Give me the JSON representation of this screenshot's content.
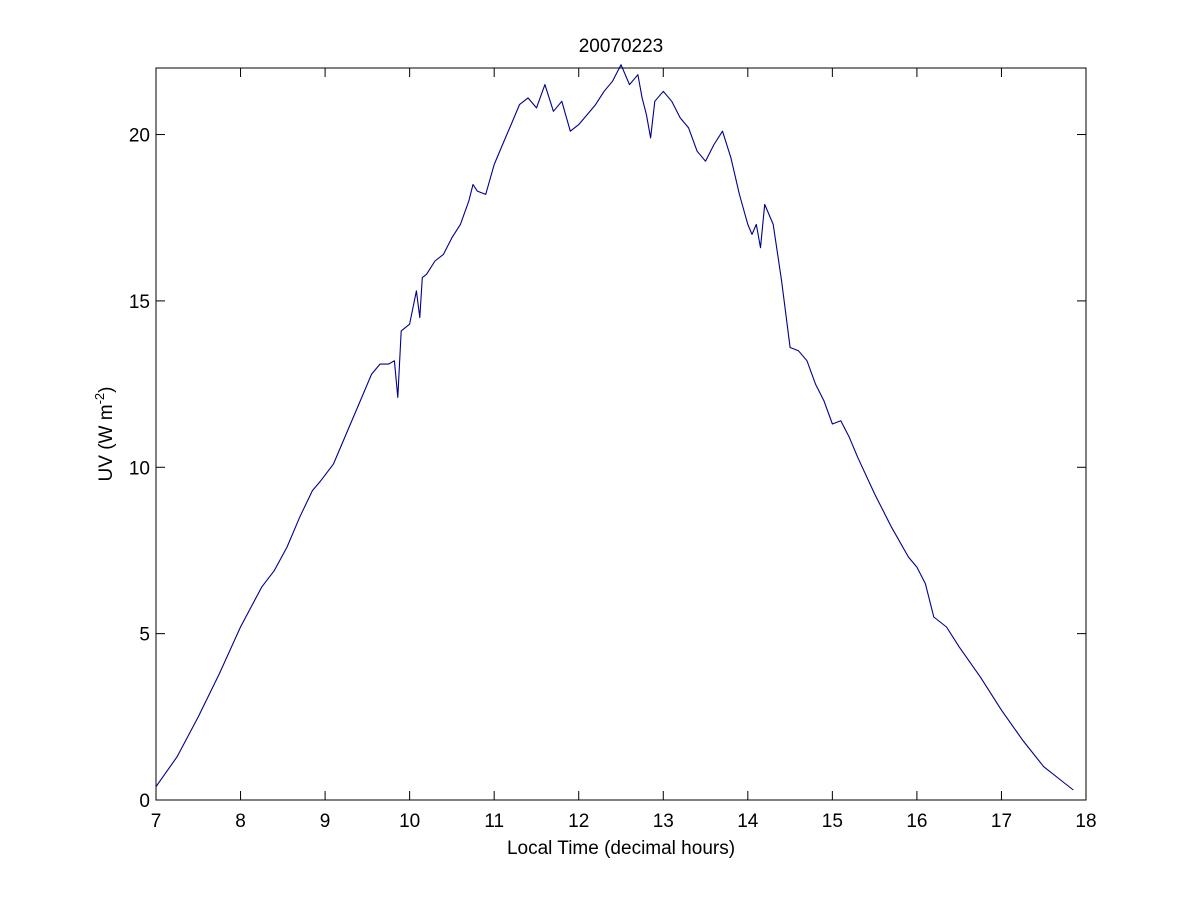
{
  "chart_data": {
    "type": "line",
    "title": "20070223",
    "xlabel": "Local Time (decimal hours)",
    "ylabel": "UV (W m⁻²)",
    "ylabel_base": "UV (W m",
    "ylabel_exp": "-2",
    "ylabel_close": ")",
    "xlim": [
      7,
      18
    ],
    "ylim": [
      0,
      22
    ],
    "xticks": [
      7,
      8,
      9,
      10,
      11,
      12,
      13,
      14,
      15,
      16,
      17,
      18
    ],
    "yticks": [
      0,
      5,
      10,
      15,
      20
    ],
    "grid": false,
    "line_color": "#00008b",
    "series": [
      {
        "x": [
          7.0,
          7.25,
          7.5,
          7.75,
          8.0,
          8.25,
          8.4,
          8.55,
          8.7,
          8.85,
          8.95,
          9.1,
          9.25,
          9.4,
          9.55,
          9.65,
          9.75,
          9.82,
          9.86,
          9.9,
          10.0,
          10.08,
          10.12,
          10.15,
          10.2,
          10.3,
          10.4,
          10.5,
          10.6,
          10.7,
          10.75,
          10.8,
          10.9,
          11.0,
          11.1,
          11.2,
          11.3,
          11.4,
          11.5,
          11.6,
          11.7,
          11.8,
          11.9,
          12.0,
          12.1,
          12.2,
          12.3,
          12.4,
          12.5,
          12.6,
          12.7,
          12.75,
          12.8,
          12.85,
          12.9,
          13.0,
          13.1,
          13.2,
          13.3,
          13.4,
          13.5,
          13.6,
          13.7,
          13.8,
          13.9,
          14.0,
          14.05,
          14.1,
          14.15,
          14.2,
          14.3,
          14.4,
          14.5,
          14.6,
          14.7,
          14.8,
          14.9,
          15.0,
          15.1,
          15.2,
          15.3,
          15.5,
          15.7,
          15.9,
          16.0,
          16.1,
          16.2,
          16.35,
          16.5,
          16.75,
          17.0,
          17.25,
          17.5,
          17.7,
          17.85
        ],
        "y": [
          0.4,
          1.3,
          2.5,
          3.8,
          5.2,
          6.4,
          6.9,
          7.6,
          8.5,
          9.3,
          9.6,
          10.1,
          11.0,
          11.9,
          12.8,
          13.1,
          13.1,
          13.2,
          12.1,
          14.1,
          14.3,
          15.3,
          14.5,
          15.7,
          15.8,
          16.2,
          16.4,
          16.9,
          17.3,
          18.0,
          18.5,
          18.3,
          18.2,
          19.1,
          19.7,
          20.3,
          20.9,
          21.1,
          20.8,
          21.5,
          20.7,
          21.0,
          20.1,
          20.3,
          20.6,
          20.9,
          21.3,
          21.6,
          22.1,
          21.5,
          21.8,
          21.1,
          20.6,
          19.9,
          21.0,
          21.3,
          21.0,
          20.5,
          20.2,
          19.5,
          19.2,
          19.7,
          20.1,
          19.3,
          18.2,
          17.3,
          17.0,
          17.3,
          16.6,
          17.9,
          17.3,
          15.6,
          13.6,
          13.5,
          13.2,
          12.5,
          12.0,
          11.3,
          11.4,
          10.9,
          10.3,
          9.2,
          8.2,
          7.3,
          7.0,
          6.5,
          5.5,
          5.2,
          4.6,
          3.7,
          2.7,
          1.8,
          1.0,
          0.6,
          0.3
        ]
      }
    ]
  }
}
